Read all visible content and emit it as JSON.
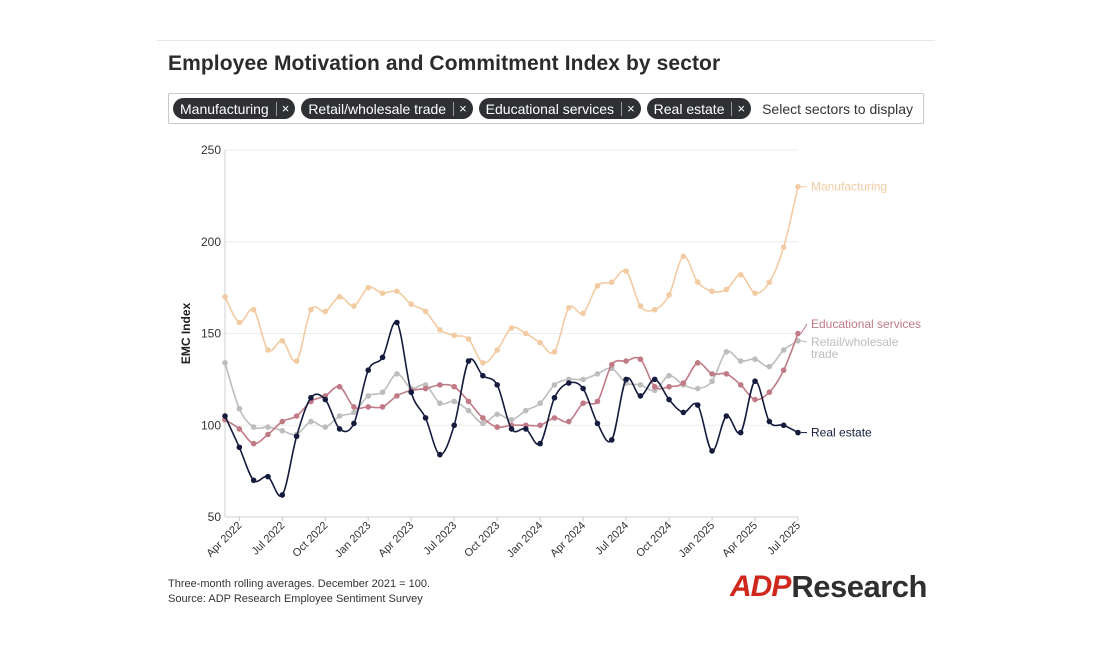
{
  "title": "Employee Motivation and Commitment Index by sector",
  "filter": {
    "chips": [
      {
        "label": "Manufacturing"
      },
      {
        "label": "Retail/wholesale trade"
      },
      {
        "label": "Educational services"
      },
      {
        "label": "Real estate"
      }
    ],
    "remove_glyph": "×",
    "placeholder": "Select sectors to display"
  },
  "chart_data": {
    "type": "line",
    "ylabel": "EMC Index",
    "xlabel": "",
    "ylim": [
      50,
      250
    ],
    "yticks": [
      50,
      100,
      150,
      200,
      250
    ],
    "x": [
      "2022-03",
      "2022-04",
      "2022-05",
      "2022-06",
      "2022-07",
      "2022-08",
      "2022-09",
      "2022-10",
      "2022-11",
      "2022-12",
      "2023-01",
      "2023-02",
      "2023-03",
      "2023-04",
      "2023-05",
      "2023-06",
      "2023-07",
      "2023-08",
      "2023-09",
      "2023-10",
      "2023-11",
      "2023-12",
      "2024-01",
      "2024-02",
      "2024-03",
      "2024-04",
      "2024-05",
      "2024-06",
      "2024-07",
      "2024-08",
      "2024-09",
      "2024-10",
      "2024-11",
      "2024-12",
      "2025-01",
      "2025-02",
      "2025-03",
      "2025-04",
      "2025-05",
      "2025-06",
      "2025-07"
    ],
    "xtick_labels": [
      "Apr 2022",
      "Jul 2022",
      "Oct 2022",
      "Jan 2023",
      "Apr 2023",
      "Jul 2023",
      "Oct 2023",
      "Jan 2024",
      "Apr 2024",
      "Jul 2024",
      "Oct 2024",
      "Jan 2025",
      "Apr 2025",
      "Jul 2025"
    ],
    "grid": "horizontal",
    "series": [
      {
        "name": "Manufacturing",
        "label": "Manufacturing",
        "color": "#f3cba3",
        "values": [
          170,
          156,
          163,
          141,
          146,
          135,
          163,
          162,
          170,
          165,
          175,
          172,
          173,
          166,
          162,
          152,
          149,
          147,
          134,
          141,
          153,
          150,
          145,
          140,
          164,
          161,
          176,
          178,
          184,
          165,
          163,
          171,
          192,
          178,
          173,
          174,
          182,
          172,
          178,
          197,
          230
        ]
      },
      {
        "name": "Retail/wholesale trade",
        "label": "Retail/wholesale trade",
        "color": "#bdbdbd",
        "values": [
          134,
          109,
          99,
          99,
          97,
          95,
          102,
          99,
          105,
          107,
          116,
          118,
          128,
          120,
          122,
          112,
          113,
          108,
          101,
          106,
          103,
          108,
          112,
          122,
          125,
          125,
          128,
          131,
          123,
          122,
          119,
          127,
          122,
          120,
          124,
          140,
          135,
          136,
          132,
          141,
          146
        ]
      },
      {
        "name": "Educational services",
        "label": "Educational services",
        "color": "#c07a85",
        "values": [
          103,
          98,
          90,
          95,
          102,
          105,
          113,
          116,
          121,
          110,
          110,
          110,
          116,
          119,
          120,
          122,
          121,
          113,
          104,
          99,
          100,
          100,
          100,
          104,
          102,
          112,
          113,
          133,
          135,
          136,
          121,
          121,
          123,
          134,
          128,
          128,
          122,
          114,
          118,
          130,
          150
        ]
      },
      {
        "name": "Real estate",
        "label": "Real estate",
        "color": "#141b3d",
        "values": [
          105,
          88,
          70,
          72,
          62,
          94,
          115,
          114,
          98,
          101,
          130,
          137,
          156,
          118,
          104,
          84,
          100,
          135,
          127,
          122,
          98,
          98,
          90,
          115,
          123,
          120,
          101,
          92,
          125,
          116,
          125,
          114,
          107,
          111,
          86,
          105,
          96,
          124,
          102,
          100,
          96
        ]
      }
    ]
  },
  "footnote": {
    "line1": "Three-month rolling averages. December 2021 = 100.",
    "line2": "Source: ADP Research Employee Sentiment Survey"
  },
  "logo": {
    "brand": "ADP",
    "word": "Research",
    "brand_color": "#d0271d"
  }
}
